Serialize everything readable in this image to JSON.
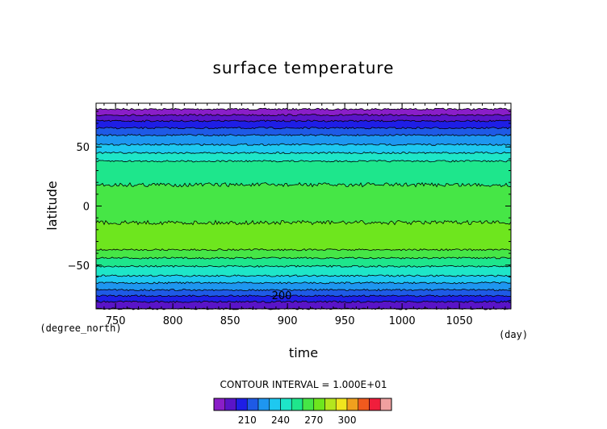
{
  "chart_data": {
    "type": "contour",
    "title": "surface temperature",
    "xlabel": "time",
    "ylabel": "latitude",
    "x_unit": "(day)",
    "y_unit": "(degree_north)",
    "xlim": [
      733,
      1095
    ],
    "ylim": [
      -87,
      87
    ],
    "x_ticks": [
      750,
      800,
      850,
      900,
      950,
      1000,
      1050
    ],
    "y_ticks": [
      -50,
      0,
      50
    ],
    "contour_interval_label": "CONTOUR INTERVAL = 1.000E+01",
    "contour_label": "200",
    "bands": [
      {
        "lat": 82,
        "color": "#8a1ec8"
      },
      {
        "lat": 77,
        "color": "#5a14c8"
      },
      {
        "lat": 72,
        "color": "#1e1ee6"
      },
      {
        "lat": 66,
        "color": "#1e5ae6"
      },
      {
        "lat": 60,
        "color": "#1e96f0"
      },
      {
        "lat": 52,
        "color": "#1ec8f0"
      },
      {
        "lat": 45,
        "color": "#1ee6c8"
      },
      {
        "lat": 38,
        "color": "#1ee68c"
      },
      {
        "lat": 18,
        "color": "#46e646"
      },
      {
        "lat": -14,
        "color": "#6ee61e"
      },
      {
        "lat": -37,
        "color": "#46e646"
      },
      {
        "lat": -44,
        "color": "#1ee68c"
      },
      {
        "lat": -51,
        "color": "#1ee6c8"
      },
      {
        "lat": -59,
        "color": "#1ec8f0"
      },
      {
        "lat": -65,
        "color": "#1e96f0"
      },
      {
        "lat": -71,
        "color": "#1e5ae6"
      },
      {
        "lat": -76,
        "color": "#1e1ee6"
      },
      {
        "lat": -81,
        "color": "#5a14c8"
      },
      {
        "lat": -87,
        "color": "#8a1ec8"
      }
    ],
    "colorbar": {
      "colors": [
        "#8a1ec8",
        "#5a14c8",
        "#1e1ee6",
        "#1e5ae6",
        "#1e96f0",
        "#1ec8f0",
        "#1ee6c8",
        "#1ee68c",
        "#46e646",
        "#6ee61e",
        "#b4e61e",
        "#f0e61e",
        "#f0a01e",
        "#f05a1e",
        "#f01e3c",
        "#f0a0a0"
      ],
      "tick_labels": [
        "210",
        "240",
        "270",
        "300"
      ],
      "tick_index": [
        2,
        5,
        8,
        11
      ]
    }
  }
}
